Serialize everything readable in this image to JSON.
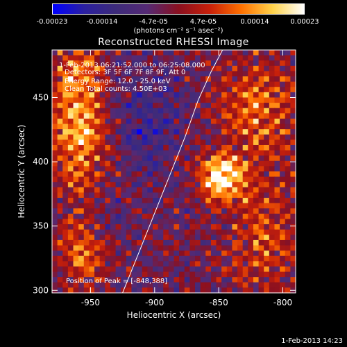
{
  "colorbar": {
    "ticks": [
      "-0.00023",
      "-0.00014",
      "-4.7e-05",
      "4.7e-05",
      "0.00014",
      "0.00023"
    ],
    "units": "(photons cm⁻² s⁻¹ asec⁻²)"
  },
  "chart_data": {
    "type": "heatmap",
    "title": "Reconstructed RHESSI Image",
    "xlabel": "Heliocentric X (arcsec)",
    "ylabel": "Heliocentric Y (arcsec)",
    "xlim": [
      -980,
      -790
    ],
    "ylim": [
      298,
      487
    ],
    "x_ticks": [
      -950,
      -900,
      -850,
      -800
    ],
    "y_ticks": [
      300,
      350,
      400,
      450
    ],
    "x_tick_labels": [
      "-950",
      "-900",
      "-850",
      "-800"
    ],
    "y_tick_labels": [
      "300",
      "350",
      "400",
      "450"
    ],
    "color_range": [
      -0.00023,
      0.00023
    ],
    "colormap": [
      "#0000ff",
      "#2b20a0",
      "#3d2b7a",
      "#552a75",
      "#8a1020",
      "#c8200a",
      "#ff7000",
      "#ffd24a",
      "#ffffff"
    ],
    "peak": [
      -848,
      388
    ],
    "annotations": [
      "1-Feb-2013 06:21:52.000 to 06:25:08.000",
      "Detectors: 3F 5F 6F 7F 8F 9F, Att 0",
      "Energy Range: 12.0 - 25.0 keV",
      "Clean    Total counts: 4.50E+03",
      "Position of Peak = [-848,388]"
    ],
    "limb_curve": {
      "x": [
        -925,
        -912,
        -900,
        -888,
        -876,
        -866,
        -856,
        -847
      ],
      "y": [
        298,
        330,
        360,
        390,
        420,
        448,
        470,
        487
      ]
    }
  },
  "footer": {
    "date": "1-Feb-2013 14:23"
  }
}
